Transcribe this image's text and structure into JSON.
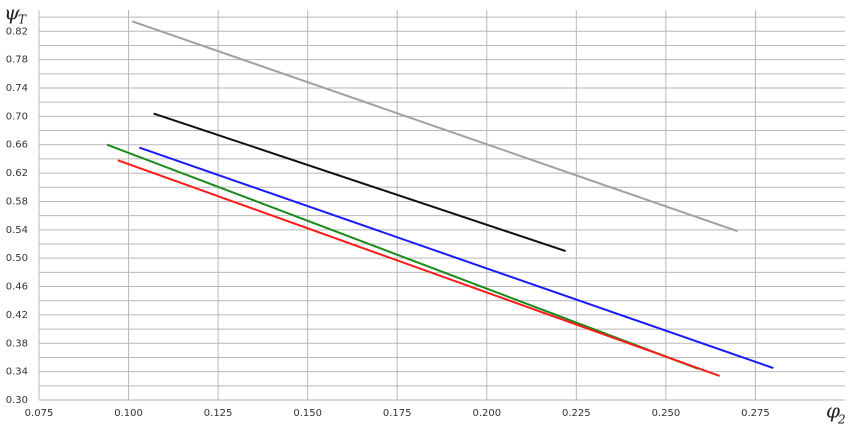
{
  "chart_data": {
    "type": "line",
    "y_label": "ψ",
    "y_label_sub": "T",
    "x_label": "φ",
    "x_label_sub": "2",
    "xlim": [
      0.075,
      0.3
    ],
    "ylim": [
      0.3,
      0.85
    ],
    "xticks": [
      0.075,
      {
        "value": 0.1,
        "label": "0.100"
      },
      0.125,
      {
        "value": 0.15,
        "label": "0.150"
      },
      0.175,
      {
        "value": 0.2,
        "label": "0.200"
      },
      0.225,
      {
        "value": 0.25,
        "label": "0.250"
      },
      0.275
    ],
    "yticks": [
      {
        "value": 0.3,
        "label": "0.30"
      },
      0.34,
      0.38,
      0.42,
      0.46,
      {
        "value": 0.5,
        "label": "0.50"
      },
      0.54,
      0.58,
      0.62,
      0.66,
      {
        "value": 0.7,
        "label": "0.70"
      },
      0.74,
      0.78,
      0.82
    ],
    "minor_yticks": [
      0.32,
      0.36,
      0.4,
      0.44,
      0.48,
      0.52,
      0.56,
      0.6,
      0.64,
      0.68,
      0.72,
      0.76,
      0.8,
      0.84
    ],
    "grid": true,
    "series": [
      {
        "color": "#a0a0a0",
        "x": [
          0.101,
          0.27
        ],
        "values": [
          0.834,
          0.538
        ]
      },
      {
        "color": "#111111",
        "x": [
          0.107,
          0.222
        ],
        "values": [
          0.704,
          0.51
        ]
      },
      {
        "color": "#1a1aff",
        "x": [
          0.103,
          0.28
        ],
        "values": [
          0.656,
          0.345
        ]
      },
      {
        "color": "#1a8a1a",
        "x": [
          0.094,
          0.259
        ],
        "values": [
          0.66,
          0.344
        ]
      },
      {
        "color": "#ff1a1a",
        "x": [
          0.097,
          0.265
        ],
        "values": [
          0.638,
          0.334
        ]
      }
    ]
  }
}
